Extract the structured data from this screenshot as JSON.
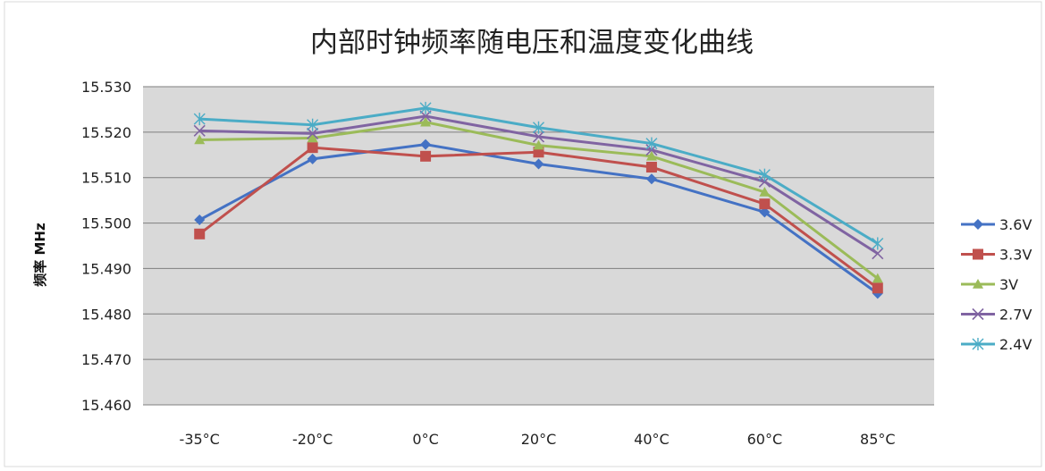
{
  "chart_data": {
    "type": "line",
    "title": "内部时钟频率随电压和温度变化曲线",
    "xlabel": "",
    "ylabel": "频率 MHz",
    "categories": [
      "-35°C",
      "-20°C",
      "0°C",
      "20°C",
      "40°C",
      "60°C",
      "85°C"
    ],
    "ylim": [
      15.46,
      15.53
    ],
    "yticks": [
      "15.460",
      "15.470",
      "15.480",
      "15.490",
      "15.500",
      "15.510",
      "15.520",
      "15.530"
    ],
    "grid": "horizontal",
    "legend_position": "right",
    "series": [
      {
        "name": "3.6V",
        "color": "#4472C4",
        "marker": "diamond",
        "values": [
          15.5007,
          15.5141,
          15.5173,
          15.513,
          15.5097,
          15.5024,
          15.4845
        ]
      },
      {
        "name": "3.3V",
        "color": "#C0504D",
        "marker": "square",
        "values": [
          15.4976,
          15.5166,
          15.5147,
          15.5156,
          15.5123,
          15.5042,
          15.4857
        ]
      },
      {
        "name": "3V",
        "color": "#9BBB59",
        "marker": "triangle",
        "values": [
          15.5183,
          15.5187,
          15.5222,
          15.5171,
          15.5147,
          15.5068,
          15.4878
        ]
      },
      {
        "name": "2.7V",
        "color": "#8064A2",
        "marker": "x",
        "values": [
          15.5203,
          15.5197,
          15.5235,
          15.519,
          15.5161,
          15.5091,
          15.4933
        ]
      },
      {
        "name": "2.4V",
        "color": "#4BACC6",
        "marker": "star",
        "values": [
          15.5229,
          15.5216,
          15.5253,
          15.521,
          15.5175,
          15.5106,
          15.4955
        ]
      }
    ]
  }
}
